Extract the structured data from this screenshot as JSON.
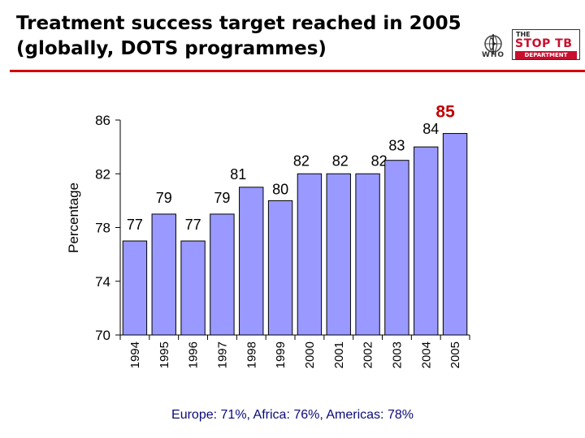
{
  "title_line1": "Treatment success target reached in 2005",
  "title_line2": "(globally, DOTS programmes)",
  "logo": {
    "who_text": "WHO",
    "stoptb_the": "THE",
    "stoptb_main": "STOP TB",
    "stoptb_department": "DEPARTMENT"
  },
  "colors": {
    "bar_fill": "#9999ff",
    "bar_stroke": "#000000",
    "title_rule": "#d40000",
    "highlight_label": "#c00000",
    "footnote": "#0a0a7a"
  },
  "chart_data": {
    "type": "bar",
    "categories": [
      "1994",
      "1995",
      "1996",
      "1997",
      "1998",
      "1999",
      "2000",
      "2001",
      "2002",
      "2003",
      "2004",
      "2005"
    ],
    "values": [
      77,
      79,
      77,
      79,
      81,
      80,
      82,
      82,
      82,
      83,
      84,
      85
    ],
    "labels": [
      "77",
      "79",
      "77",
      "79",
      "81",
      "80",
      "82",
      "82",
      "82",
      "83",
      "84",
      "85"
    ],
    "highlight_index": 11,
    "title": "",
    "xlabel": "",
    "ylabel": "Percentage",
    "ylim": [
      70,
      86
    ],
    "yticks": [
      70,
      74,
      78,
      82,
      86
    ],
    "grid": false
  },
  "footnote": "Europe: 71%, Africa: 76%, Americas: 78%"
}
